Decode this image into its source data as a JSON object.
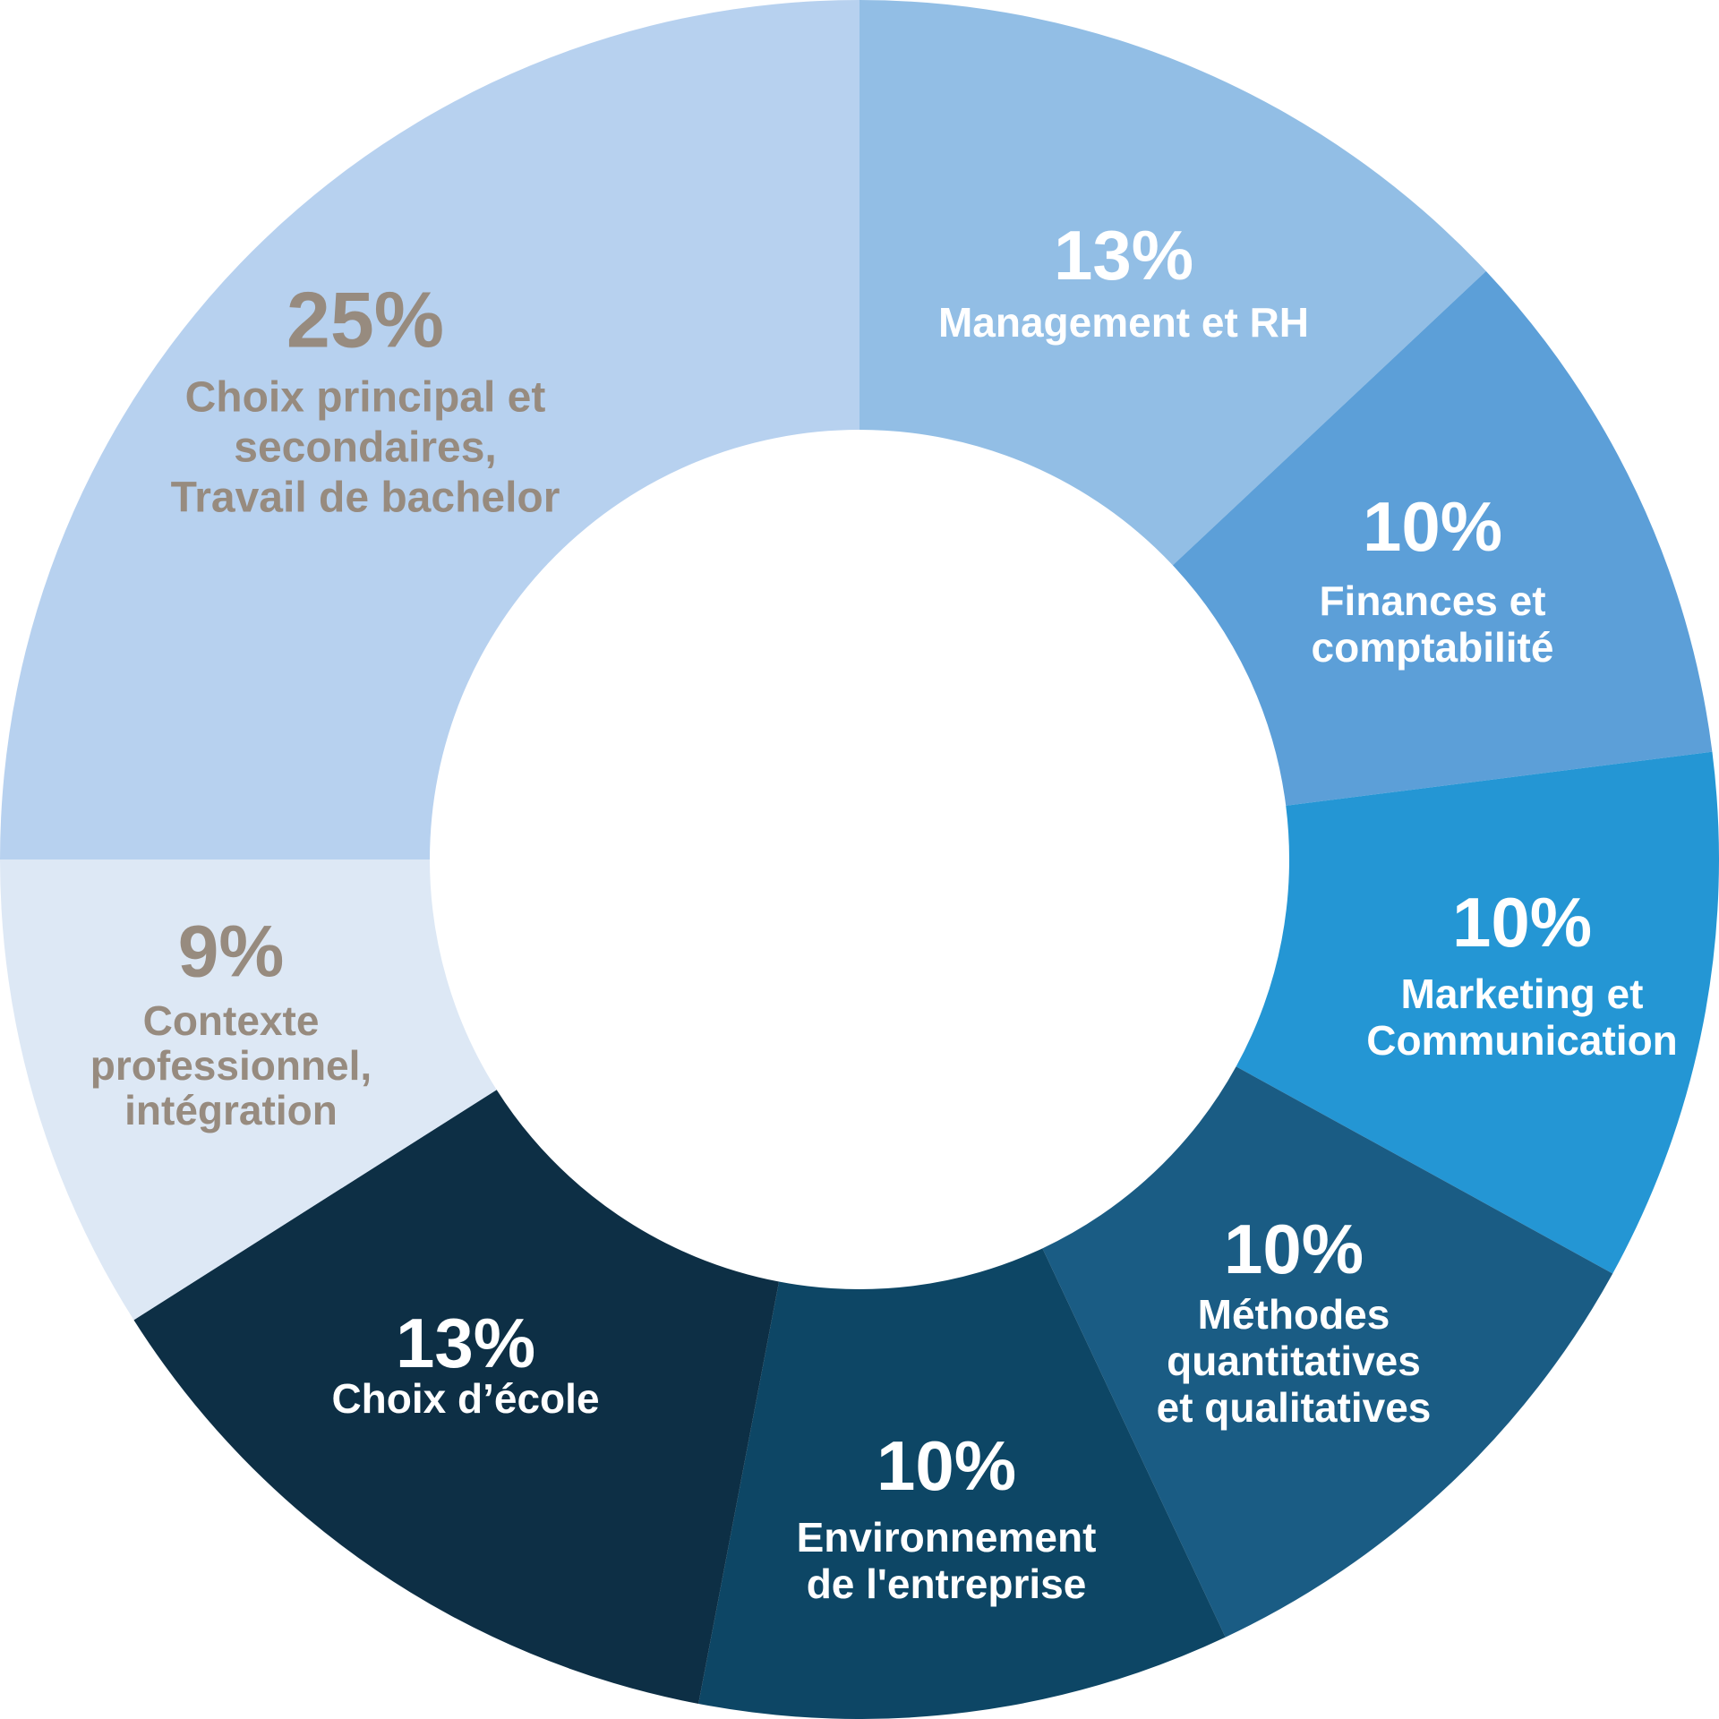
{
  "chart_data": {
    "type": "pie",
    "variant": "donut",
    "direction": "clockwise",
    "start_angle_deg": 0,
    "inner_radius_ratio": 0.5,
    "legend_position": "inside-segments",
    "grid": false,
    "total_percent": 100,
    "text_color_light_segments": "#978b7f",
    "text_color_dark_segments": "#ffffff",
    "segments": [
      {
        "label": "Management et RH",
        "label_lines": [
          "Management et RH"
        ],
        "value": 13,
        "percent_label": "13%",
        "color": "#92bee5",
        "text_color": "#ffffff"
      },
      {
        "label": "Finances et comptabilité",
        "label_lines": [
          "Finances et",
          "comptabilité"
        ],
        "value": 10,
        "percent_label": "10%",
        "color": "#5c9fd8",
        "text_color": "#ffffff"
      },
      {
        "label": "Marketing et Communication",
        "label_lines": [
          "Marketing et",
          "Communication"
        ],
        "value": 10,
        "percent_label": "10%",
        "color": "#2496d4",
        "text_color": "#ffffff"
      },
      {
        "label": "Méthodes quantitatives et qualitatives",
        "label_lines": [
          "Méthodes",
          "quantitatives",
          "et qualitatives"
        ],
        "value": 10,
        "percent_label": "10%",
        "color": "#1a5c84",
        "text_color": "#ffffff"
      },
      {
        "label": "Environnement de l'entreprise",
        "label_lines": [
          "Environnement",
          "de l'entreprise"
        ],
        "value": 10,
        "percent_label": "10%",
        "color": "#0d4665",
        "text_color": "#ffffff"
      },
      {
        "label": "Choix d’école",
        "label_lines": [
          "Choix d’école"
        ],
        "value": 13,
        "percent_label": "13%",
        "color": "#0d2f45",
        "text_color": "#ffffff"
      },
      {
        "label": "Contexte professionnel, intégration",
        "label_lines": [
          "Contexte",
          "professionnel,",
          "intégration"
        ],
        "value": 9,
        "percent_label": "9%",
        "color": "#dde8f5",
        "text_color": "#978b7f"
      },
      {
        "label": "Choix principal et secondaires, Travail de bachelor",
        "label_lines": [
          "Choix principal et",
          "secondaires,",
          "Travail de bachelor"
        ],
        "value": 25,
        "percent_label": "25%",
        "color": "#b7d1ef",
        "text_color": "#978b7f"
      }
    ]
  }
}
